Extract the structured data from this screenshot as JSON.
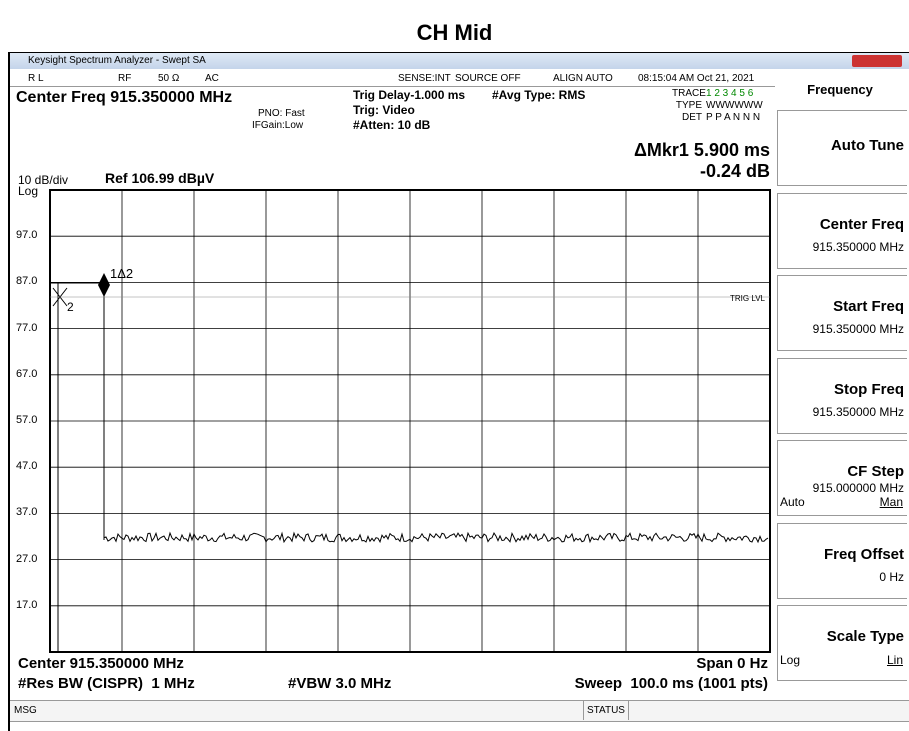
{
  "title": "CH Mid",
  "window": {
    "title": "Keysight Spectrum Analyzer - Swept SA"
  },
  "status_bar": {
    "rl": "R L",
    "rf": "RF",
    "impedance": "50 Ω",
    "coupling": "AC",
    "sense": "SENSE:INT",
    "source": "SOURCE OFF",
    "align": "ALIGN AUTO",
    "time": "08:15:04 AM Oct 21, 2021"
  },
  "header": {
    "center_freq": "Center Freq 915.350000 MHz",
    "pno": "PNO: Fast",
    "ifgain": "IFGain:Low",
    "trig_delay": "Trig Delay-1.000 ms",
    "trig": "Trig: Video",
    "atten": "#Atten: 10 dB",
    "avg_type": "#Avg Type: RMS",
    "trace_label": "TRACE",
    "trace_nums": "1 2 3 4 5 6",
    "type_label": "TYPE",
    "type_vals": "WWWWWW",
    "det_label": "DET",
    "det_vals": "P P A N N N",
    "marker_readout": "ΔMkr1 5.900 ms",
    "marker_value": "-0.24 dB"
  },
  "graph": {
    "scale": "10 dB/div",
    "log": "Log",
    "ref": "Ref 106.99 dBµV",
    "y_labels": [
      "97.0",
      "87.0",
      "77.0",
      "67.0",
      "57.0",
      "47.0",
      "37.0",
      "27.0",
      "17.0"
    ],
    "marker1": "1Δ2",
    "marker2": "2",
    "trig_lvl": "TRIG LVL"
  },
  "footer": {
    "center": "Center 915.350000 MHz",
    "span": "Span 0 Hz",
    "res_bw": "#Res BW (CISPR)  1 MHz",
    "vbw": "#VBW 3.0 MHz",
    "sweep": "Sweep  100.0 ms (1001 pts)"
  },
  "message_bar": {
    "msg": "MSG",
    "status": "STATUS"
  },
  "softkeys": {
    "menu": "Frequency",
    "keys": [
      {
        "label": "Auto Tune"
      },
      {
        "label": "Center Freq",
        "value": "915.350000 MHz"
      },
      {
        "label": "Start Freq",
        "value": "915.350000 MHz"
      },
      {
        "label": "Stop Freq",
        "value": "915.350000 MHz"
      },
      {
        "label": "CF Step",
        "value": "915.000000 MHz",
        "options": [
          "Auto",
          "Man"
        ]
      },
      {
        "label": "Freq Offset",
        "value": "0 Hz"
      },
      {
        "label": "Scale Type",
        "options": [
          "Log",
          "Lin"
        ]
      }
    ]
  }
}
